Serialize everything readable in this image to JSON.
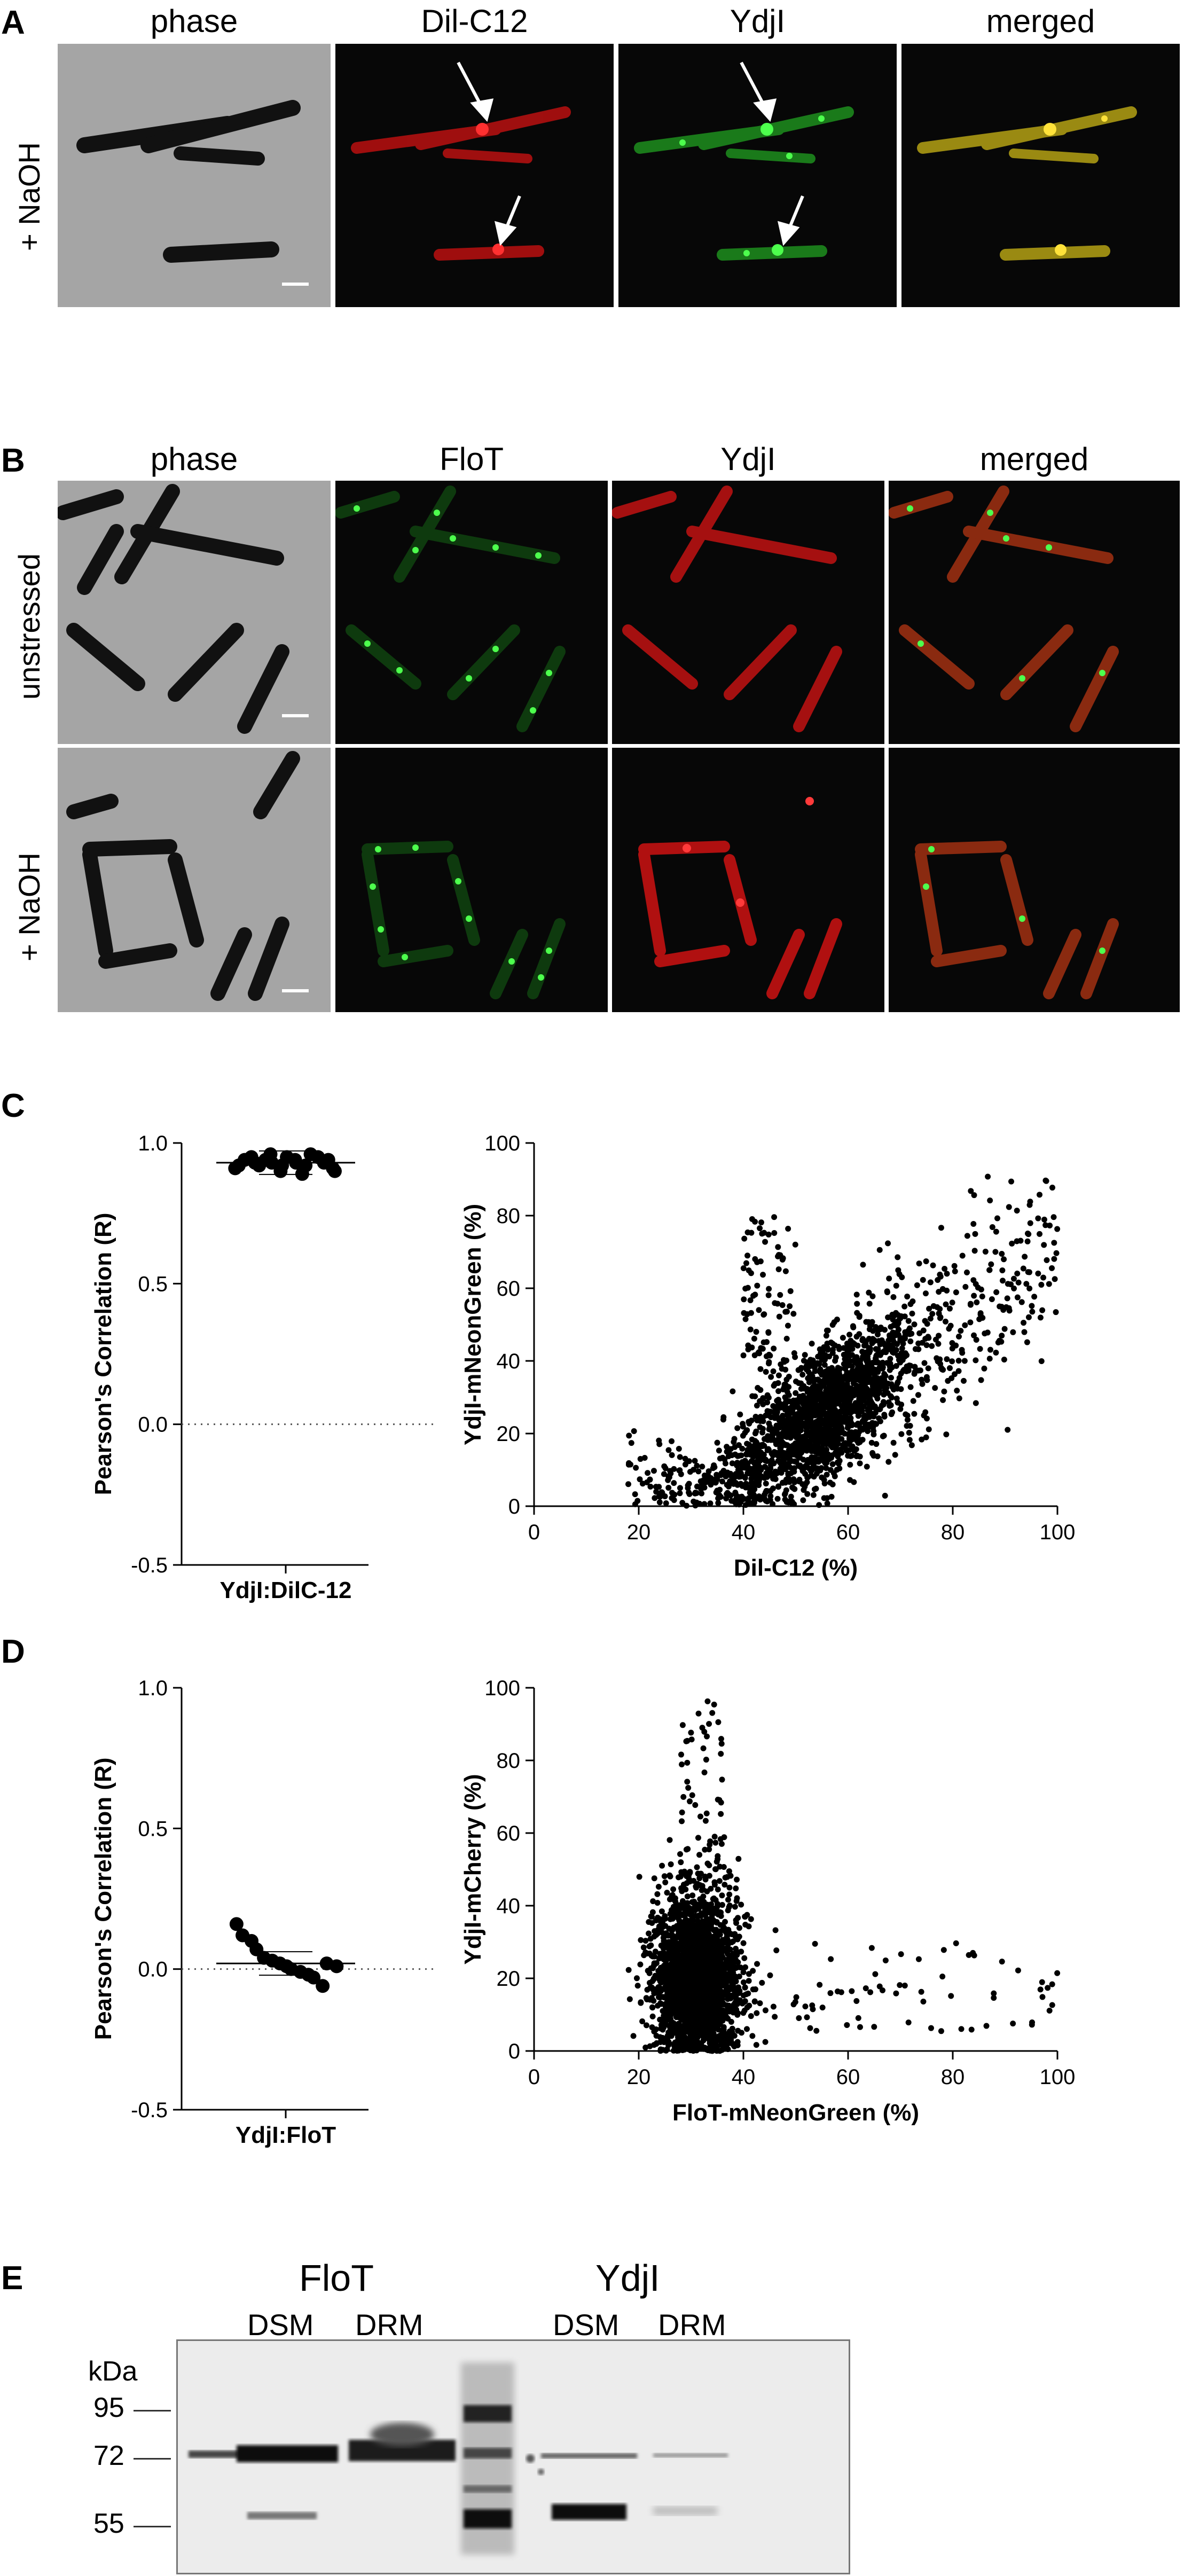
{
  "panels": {
    "A": {
      "label": "A",
      "titles": [
        "phase",
        "Dil-C12",
        "YdjI",
        "merged"
      ],
      "row_label": "+ NaOH"
    },
    "B": {
      "label": "B",
      "titles": [
        "phase",
        "FloT",
        "YdjI",
        "merged"
      ],
      "row_labels": [
        "unstressed",
        "+ NaOH"
      ]
    },
    "C": {
      "label": "C"
    },
    "D": {
      "label": "D"
    },
    "E": {
      "label": "E",
      "group_labels": [
        "FloT",
        "YdjI"
      ],
      "lane_labels": [
        "DSM",
        "DRM",
        "DSM",
        "DRM"
      ],
      "kda_label": "kDa",
      "markers": [
        "95",
        "72",
        "55"
      ]
    }
  },
  "colors": {
    "red_channel": "#e01010",
    "green_channel": "#1ed41e",
    "merged_channel": "#d4c21a",
    "phase_bg": "#a5a5a5"
  },
  "chart_data": [
    {
      "id": "C-left",
      "type": "scatter",
      "ylabel": "Pearson's Correlation (R)",
      "xlabel": "",
      "categories": [
        "YdjI:DilC-12"
      ],
      "yticks": [
        "-0.5",
        "0.0",
        "0.5",
        "1.0"
      ],
      "ylim": [
        -0.5,
        1.0
      ],
      "reference_line": 0.0,
      "mean": 0.93,
      "values": [
        0.91,
        0.92,
        0.94,
        0.95,
        0.93,
        0.92,
        0.94,
        0.96,
        0.93,
        0.9,
        0.92,
        0.95,
        0.94,
        0.93,
        0.89,
        0.92,
        0.96,
        0.95,
        0.93,
        0.94,
        0.91,
        0.9
      ]
    },
    {
      "id": "C-right",
      "type": "scatter",
      "xlabel": "Dil-C12 (%)",
      "ylabel": "YdjI-mNeonGreen (%)",
      "xticks": [
        "0",
        "20",
        "40",
        "60",
        "80",
        "100"
      ],
      "yticks": [
        "0",
        "20",
        "40",
        "60",
        "80",
        "100"
      ],
      "xlim": [
        0,
        100
      ],
      "ylim": [
        0,
        100
      ],
      "cloud": {
        "n": 1800,
        "center_x": 55,
        "center_y": 25,
        "spread_x": 9,
        "spread_y": 9,
        "slope": 0.9
      }
    },
    {
      "id": "D-left",
      "type": "scatter",
      "ylabel": "Pearson's Correlation (R)",
      "xlabel": "",
      "categories": [
        "YdjI:FloT"
      ],
      "yticks": [
        "-0.5",
        "0.0",
        "0.5",
        "1.0"
      ],
      "ylim": [
        -0.5,
        1.0
      ],
      "reference_line": 0.0,
      "mean": 0.02,
      "values": [
        0.16,
        0.12,
        0.1,
        0.07,
        0.04,
        0.03,
        0.02,
        0.01,
        0.0,
        -0.01,
        -0.02,
        -0.03,
        -0.06,
        0.02,
        0.01
      ]
    },
    {
      "id": "D-right",
      "type": "scatter",
      "xlabel": "FloT-mNeonGreen (%)",
      "ylabel": "YdjI-mCherry (%)",
      "xticks": [
        "0",
        "20",
        "40",
        "60",
        "80",
        "100"
      ],
      "yticks": [
        "0",
        "20",
        "40",
        "60",
        "80",
        "100"
      ],
      "xlim": [
        0,
        100
      ],
      "ylim": [
        0,
        100
      ],
      "cloud": {
        "n": 2600,
        "center_x": 31,
        "center_y": 18,
        "spread_x": 4,
        "spread_y": 12,
        "slope": 0
      }
    }
  ]
}
